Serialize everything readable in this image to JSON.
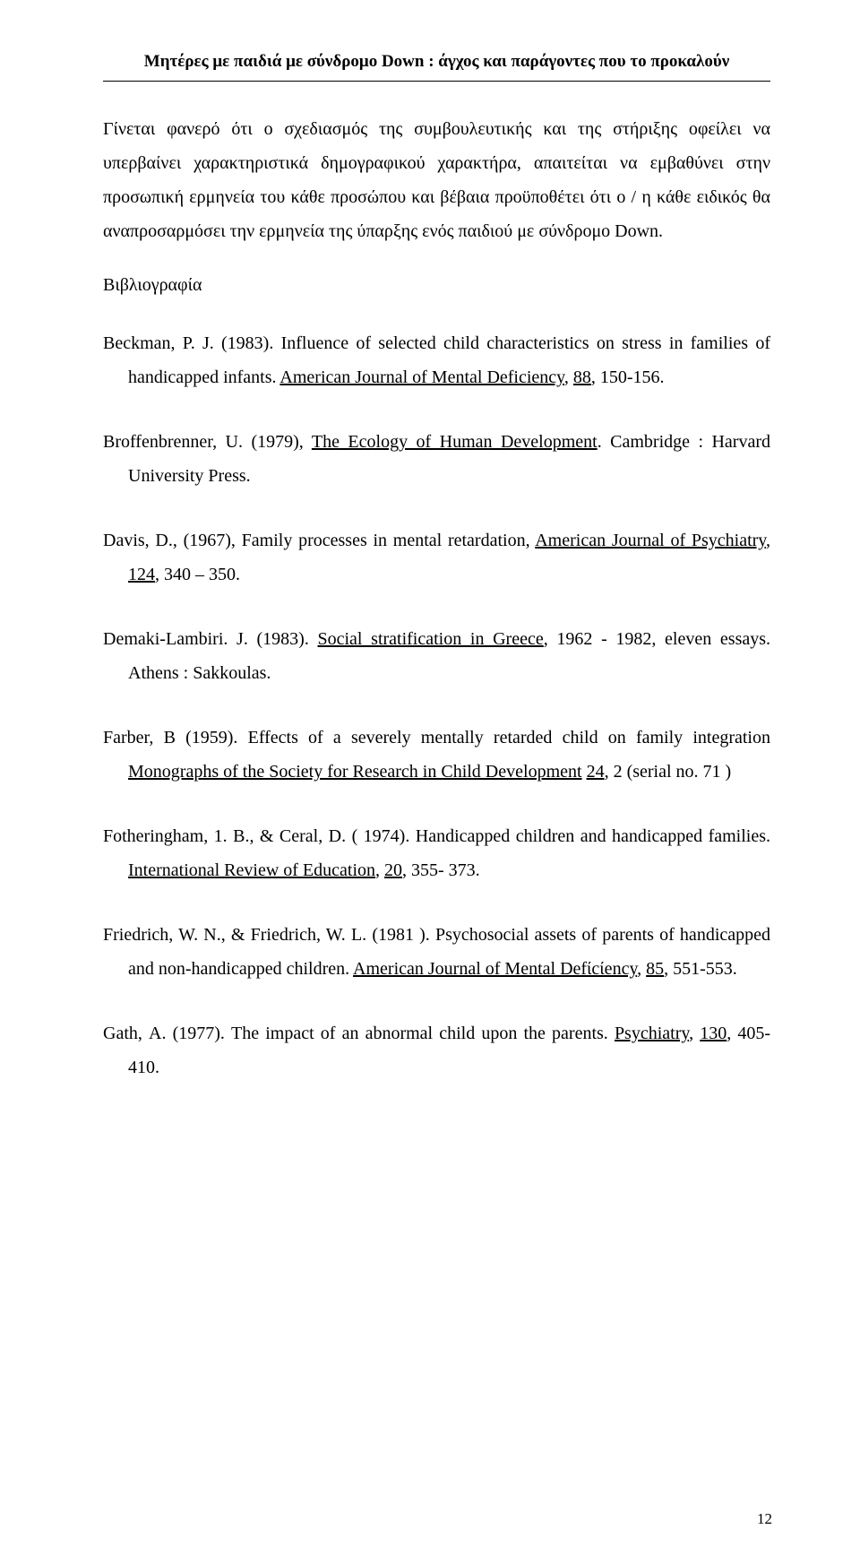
{
  "header": "Μητέρες με παιδιά με σύνδρομο Down : άγχος και παράγοντες που το προκαλούν",
  "para1": "Γίνεται φανερό ότι ο σχεδιασμός της συμβουλευτικής και της στήριξης οφείλει να υπερβαίνει χαρακτηριστικά δημογραφικού χαρακτήρα, απαιτείται να εμβαθύνει στην προσωπική ερμηνεία του κάθε προσώπου και βέβαια προϋποθέτει ότι ο / η κάθε ειδικός θα αναπροσαρμόσει την ερμηνεία της ύπαρξης ενός παιδιού με σύνδρομο Down.",
  "bibTitle": "Βιβλιογραφία",
  "r1a": "Beckman, P. J. (1983). Influence of selected child characteristics on stress in families of handicapped infants. ",
  "r1u": "American Journal of Mental Deficiency",
  "r1b": ", ",
  "r1u2": "88",
  "r1c": ", 150-156.",
  "r2a": "Broffenbrenner, U. (1979), ",
  "r2u": "The Ecology of Human Development",
  "r2b": ". Cambridge : Harvard University Press.",
  "r3a": "Davis, D., (1967), Family processes in mental retardation, ",
  "r3u": "American Journal of Psychiatry",
  "r3b": ", ",
  "r3u2": "124",
  "r3c": ", 340 – 350.",
  "r4a": "Demaki-Lambiri. J. (1983). ",
  "r4u": "Social stratification in Greece",
  "r4b": ", 1962 - 1982, eleven essays. Athens : Sakkoulas.",
  "r5a": "Farber, B (1959). Effects of a severely mentally retarded child on family integration ",
  "r5u": "Monographs of the Society for Research  in  Child Development",
  "r5b": " ",
  "r5u2": "24",
  "r5c": ", 2 (serial no. 71 )",
  "r6a": "Fotheringham, 1. Β., & Ceral, D.  ( 1974).  Handicapped children and handicapped families. ",
  "r6u": "International Review of Education",
  "r6b": ", ",
  "r6u2": "20",
  "r6c": ", 355- 373.",
  "r7a": "Friedrich, W. Ν., & Friedrich, W. L. (1981 ). Psychosocial assets of parents of handicapped and non-handicapped children. ",
  "r7u": "American Journal of Mental Defίcίency",
  "r7b": ", ",
  "r7u2": "85",
  "r7c": ", 551-553.",
  "r8a": "Gath, Α.  (1977).  The impact of an abnormal child upon the parents. ",
  "r8u": "Psychiatry",
  "r8b": ", ",
  "r8u2": "130",
  "r8c": ", 405-410.",
  "pageNumber": "12"
}
